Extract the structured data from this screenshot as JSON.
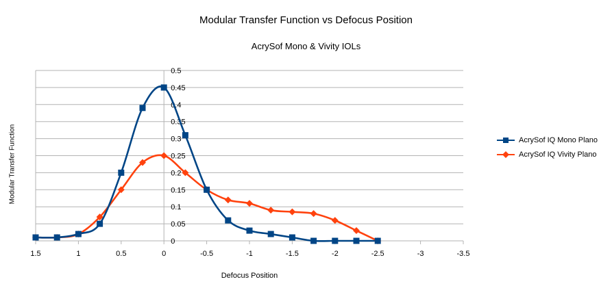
{
  "chart_data": {
    "type": "line",
    "title": "Modular Transfer Function vs Defocus Position",
    "subtitle": "AcrySof Mono & Vivity IOLs",
    "xlabel": "Defocus Position",
    "ylabel": "Modular Transfer Function",
    "xlim": [
      1.5,
      -3.5
    ],
    "ylim": [
      0,
      0.5
    ],
    "x_reversed": true,
    "x_ticks": [
      "1.5",
      "1",
      "0.5",
      "0",
      "-0.5",
      "-1",
      "-1.5",
      "-2",
      "-2.5",
      "-3",
      "-3.5"
    ],
    "x_tick_values": [
      1.5,
      1,
      0.5,
      0,
      -0.5,
      -1,
      -1.5,
      -2,
      -2.5,
      -3,
      -3.5
    ],
    "y_ticks": [
      "0",
      "0.05",
      "0.1",
      "0.15",
      "0.2",
      "0.25",
      "0.3",
      "0.35",
      "0.4",
      "0.45",
      "0.5"
    ],
    "y_tick_values": [
      0,
      0.05,
      0.1,
      0.15,
      0.2,
      0.25,
      0.3,
      0.35,
      0.4,
      0.45,
      0.5
    ],
    "grid": true,
    "legend_position": "right",
    "smooth": true,
    "series": [
      {
        "name": "AcrySof IQ Mono Plano",
        "color": "#004586",
        "marker": "square",
        "x": [
          1.5,
          1.25,
          1,
          0.75,
          0.5,
          0.25,
          0,
          -0.25,
          -0.5,
          -0.75,
          -1,
          -1.25,
          -1.5,
          -1.75,
          -2,
          -2.25,
          -2.5
        ],
        "y": [
          0.01,
          0.01,
          0.02,
          0.05,
          0.2,
          0.39,
          0.45,
          0.31,
          0.15,
          0.06,
          0.03,
          0.02,
          0.01,
          0,
          0,
          0,
          0
        ]
      },
      {
        "name": "AcrySof IQ Vivity Plano",
        "color": "#ff420e",
        "marker": "diamond",
        "x": [
          1.5,
          1.25,
          1,
          0.75,
          0.5,
          0.25,
          0,
          -0.25,
          -0.5,
          -0.75,
          -1,
          -1.25,
          -1.5,
          -1.75,
          -2,
          -2.25,
          -2.5
        ],
        "y": [
          0.01,
          0.01,
          0.02,
          0.07,
          0.15,
          0.23,
          0.25,
          0.2,
          0.15,
          0.12,
          0.11,
          0.09,
          0.085,
          0.08,
          0.06,
          0.03,
          0
        ]
      }
    ]
  }
}
